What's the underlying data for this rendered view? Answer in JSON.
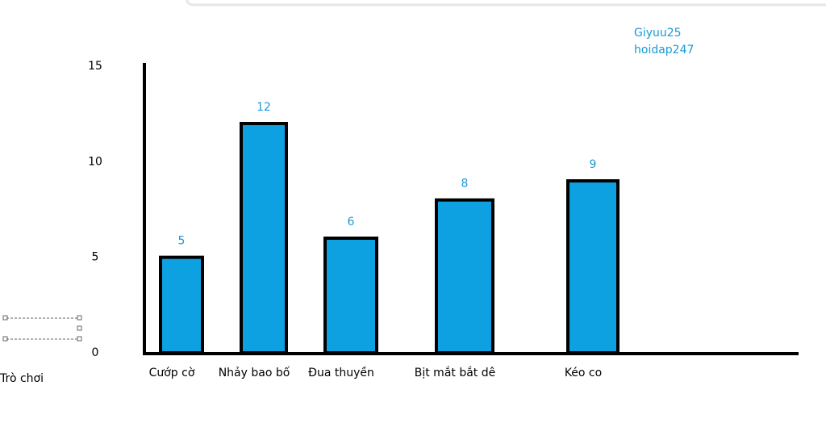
{
  "chart_data": {
    "type": "bar",
    "categories": [
      "Cướp cờ",
      "Nhảy bao bố",
      "Đua thuyền",
      "Bịt mắt bắt dê",
      "Kéo co"
    ],
    "values": [
      5,
      12,
      6,
      8,
      9
    ],
    "color": "#0ea1e2",
    "ylim": [
      0,
      15
    ],
    "yticks": [
      0,
      5,
      10,
      15
    ],
    "x_label": "Trò chơi",
    "annotations": [
      "Giyuu25",
      "hoidap247"
    ]
  }
}
